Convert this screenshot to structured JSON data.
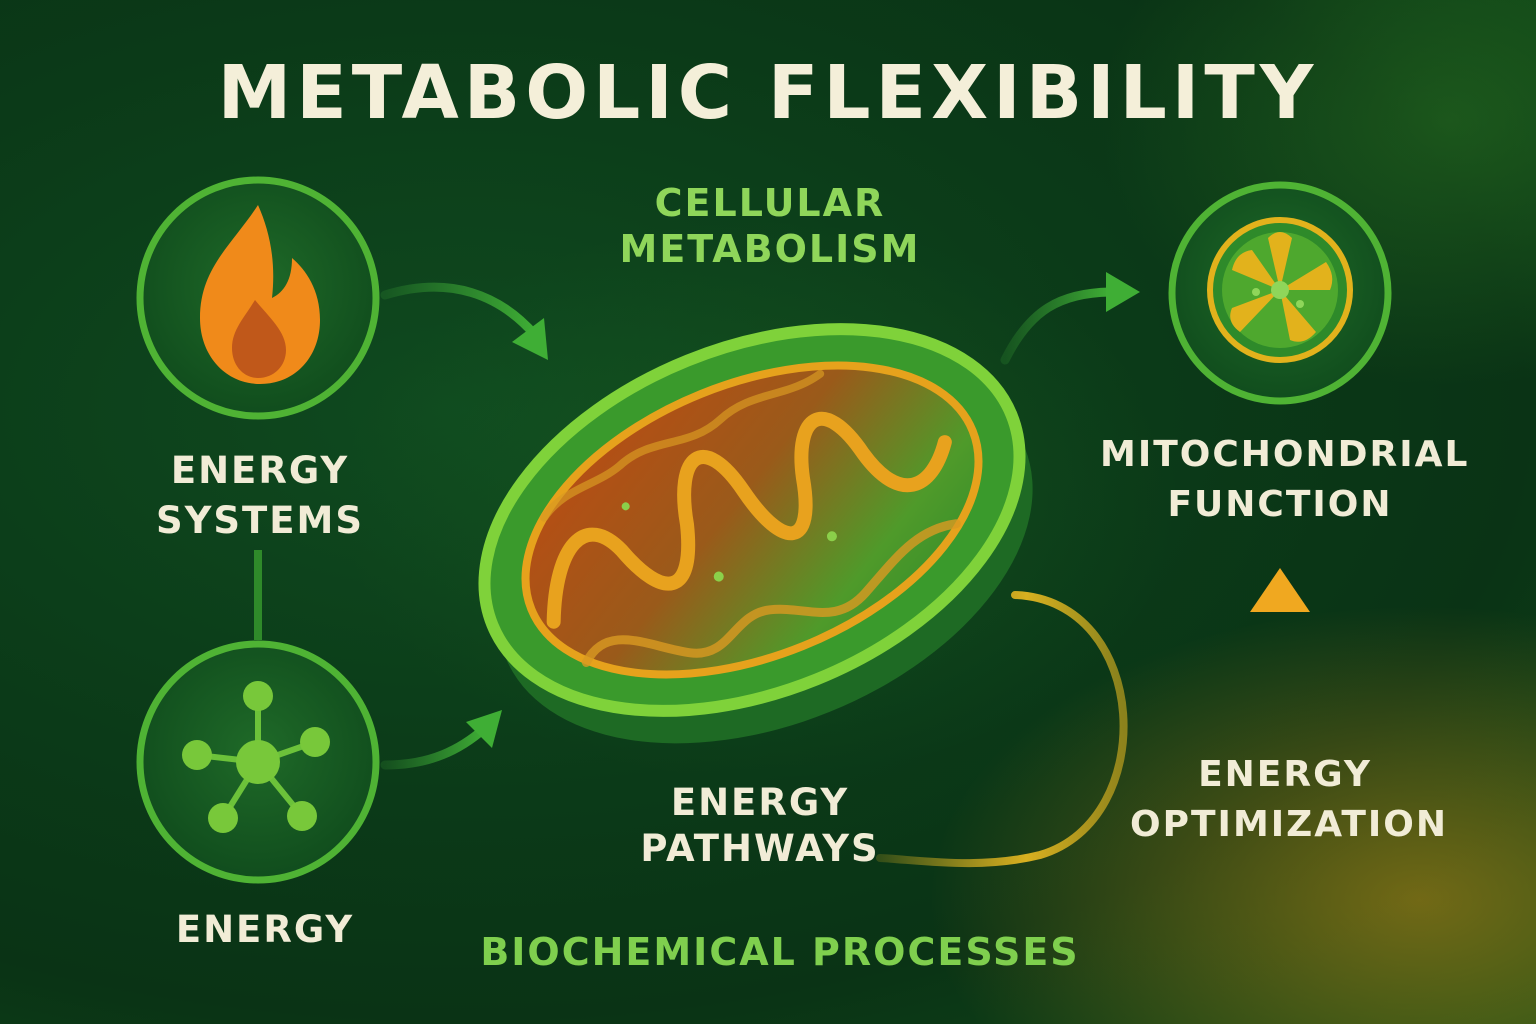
{
  "title": "METABOLIC FLEXIBILITY",
  "labels": {
    "cellular_metabolism": "CELLULAR METABOLISM",
    "energy_systems": "ENERGY SYSTEMS",
    "energy": "ENERGY",
    "mitochondrial_function": "MITOCHONDRIAL FUNCTION",
    "energy_pathways": "ENERGY PATHWAYS",
    "energy_optimization": "ENERGY OPTIMIZATION",
    "biochemical_processes": "BIOCHEMICAL PROCESSES"
  },
  "icons": {
    "energy_systems": "flame-icon",
    "energy": "molecule-icon",
    "mitochondrial_function": "mitochondria-cross-section-icon",
    "center": "mitochondrion"
  },
  "colors": {
    "background": "#0b3a18",
    "title": "#f4efd9",
    "label": "#f1ecd6",
    "accent_green": "#6cc23a",
    "accent_light_green": "#8fd65a",
    "accent_orange": "#f08a1a",
    "accent_yellow": "#e2b21c"
  }
}
